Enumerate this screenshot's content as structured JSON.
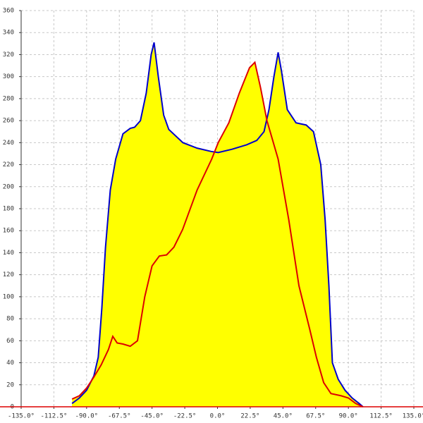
{
  "chart_data": {
    "type": "area",
    "xlim": [
      -135,
      135
    ],
    "xticks": [
      {
        "value": -135,
        "label": "-135.0°"
      },
      {
        "value": -112.5,
        "label": "-112.5°"
      },
      {
        "value": -90,
        "label": "-90.0°"
      },
      {
        "value": -67.5,
        "label": "-67.5°"
      },
      {
        "value": -45,
        "label": "-45.0°"
      },
      {
        "value": -22.5,
        "label": "-22.5°"
      },
      {
        "value": 0,
        "label": "0.0°"
      },
      {
        "value": 22.5,
        "label": "22.5°"
      },
      {
        "value": 45,
        "label": "45.0°"
      },
      {
        "value": 67.5,
        "label": "67.5°"
      },
      {
        "value": 90,
        "label": "90.0°"
      },
      {
        "value": 112.5,
        "label": "112.5°"
      },
      {
        "value": 135,
        "label": "135.0°"
      }
    ],
    "ylim": [
      0,
      360
    ],
    "yticks": [
      0,
      20,
      40,
      60,
      80,
      100,
      120,
      140,
      160,
      180,
      200,
      220,
      240,
      260,
      280,
      300,
      320,
      340,
      360
    ],
    "grid": true,
    "fill": "#ffff00",
    "series": [
      {
        "color": "#0000cc",
        "x": [
          -100,
          -95,
          -90,
          -85,
          -82,
          -79.5,
          -77,
          -73.7,
          -70,
          -65,
          -60,
          -57,
          -53,
          -49,
          -45.6,
          -43.6,
          -40.7,
          -37,
          -33.5,
          -23.8,
          -14,
          -4.4,
          0.5,
          10,
          20,
          27,
          32,
          35.4,
          38.8,
          41.7,
          44,
          48,
          54,
          61,
          66,
          71,
          74,
          76.6,
          79,
          83,
          87.7,
          92.6,
          97.4,
          100
        ],
        "values": [
          3,
          8,
          15,
          28,
          45,
          90,
          145,
          197,
          225,
          248,
          253,
          254,
          260,
          285,
          320,
          331,
          300,
          265,
          252,
          240,
          235,
          232,
          231,
          234,
          238,
          242,
          250,
          270,
          300,
          322,
          305,
          270,
          258,
          256,
          250,
          220,
          170,
          110,
          40,
          25,
          15,
          8,
          3,
          0
        ]
      },
      {
        "color": "#dd0000",
        "x": [
          -100,
          -95,
          -90,
          -85,
          -80,
          -75,
          -72,
          -69,
          -65,
          -60,
          -55,
          -50,
          -45,
          -40,
          -35,
          -30,
          -24,
          -14,
          -4,
          0.5,
          7.8,
          15,
          22,
          25.7,
          29.6,
          34,
          41.7,
          49,
          56,
          63.5,
          68,
          73,
          78,
          85,
          90,
          95,
          100
        ],
        "values": [
          7,
          10,
          17,
          27,
          38,
          52,
          64,
          58,
          57,
          55,
          60,
          100,
          128,
          137,
          138,
          145,
          161,
          197,
          225,
          240,
          258,
          285,
          308,
          313,
          290,
          260,
          225,
          170,
          110,
          70,
          45,
          22,
          12,
          10,
          8,
          3,
          0
        ]
      }
    ]
  }
}
